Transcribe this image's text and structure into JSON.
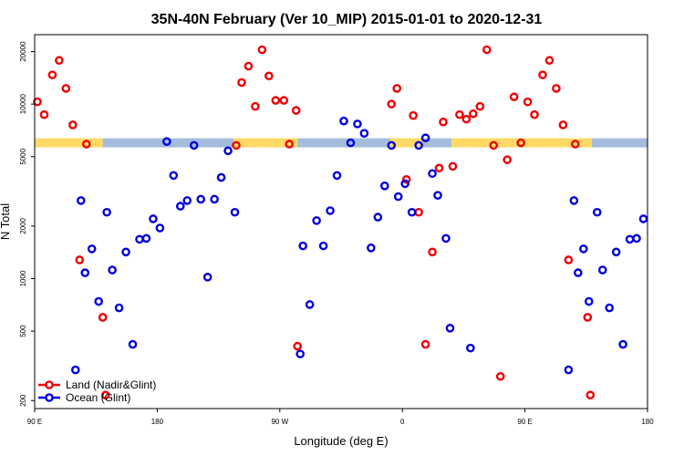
{
  "chart_data": {
    "type": "scatter",
    "title": "35N-40N February (Ver 10_MIP)   2015-01-01 to 2020-12-31",
    "xlabel": "Longitude (deg E)",
    "ylabel": "N Total",
    "yscale": "log",
    "xlim": [
      90,
      540
    ],
    "ylim": [
      180,
      25000
    ],
    "x_ticks": [
      {
        "value": 90,
        "label": "90 E"
      },
      {
        "value": 180,
        "label": "180"
      },
      {
        "value": 270,
        "label": "90 W"
      },
      {
        "value": 360,
        "label": "0"
      },
      {
        "value": 450,
        "label": "90 E"
      },
      {
        "value": 540,
        "label": "180"
      }
    ],
    "y_ticks": [
      {
        "value": 200,
        "label": "200"
      },
      {
        "value": 500,
        "label": "500"
      },
      {
        "value": 1000,
        "label": "1000"
      },
      {
        "value": 2000,
        "label": "2000"
      },
      {
        "value": 5000,
        "label": "5000"
      },
      {
        "value": 10000,
        "label": "10000"
      },
      {
        "value": 20000,
        "label": "20000"
      }
    ],
    "land_ocean_strip": {
      "y_value": 6000,
      "land_color": "#ffd966",
      "ocean_color": "#a3bddb",
      "segments": [
        {
          "type": "land",
          "x0": 90,
          "x1": 140
        },
        {
          "type": "ocean",
          "x0": 140,
          "x1": 236
        },
        {
          "type": "land",
          "x0": 236,
          "x1": 283
        },
        {
          "type": "ocean",
          "x0": 283,
          "x1": 351
        },
        {
          "type": "land",
          "x0": 351,
          "x1": 375
        },
        {
          "type": "ocean",
          "x0": 375,
          "x1": 396
        },
        {
          "type": "land",
          "x0": 396,
          "x1": 499
        },
        {
          "type": "ocean",
          "x0": 499,
          "x1": 540
        }
      ]
    },
    "series": [
      {
        "name": "Land (Nadir&Glint)",
        "color": "#ee0000",
        "points": [
          {
            "x": 92,
            "y": 10300
          },
          {
            "x": 97,
            "y": 8700
          },
          {
            "x": 103,
            "y": 14700
          },
          {
            "x": 108,
            "y": 17800
          },
          {
            "x": 113,
            "y": 12300
          },
          {
            "x": 118,
            "y": 7600
          },
          {
            "x": 123,
            "y": 1280
          },
          {
            "x": 128,
            "y": 5900
          },
          {
            "x": 140,
            "y": 600
          },
          {
            "x": 142,
            "y": 215
          },
          {
            "x": 238,
            "y": 5800
          },
          {
            "x": 242,
            "y": 13300
          },
          {
            "x": 247,
            "y": 16500
          },
          {
            "x": 252,
            "y": 9700
          },
          {
            "x": 257,
            "y": 20500
          },
          {
            "x": 262,
            "y": 14500
          },
          {
            "x": 267,
            "y": 10500
          },
          {
            "x": 273,
            "y": 10500
          },
          {
            "x": 277,
            "y": 5900
          },
          {
            "x": 282,
            "y": 9200
          },
          {
            "x": 283,
            "y": 410
          },
          {
            "x": 352,
            "y": 10000
          },
          {
            "x": 356,
            "y": 12300
          },
          {
            "x": 363,
            "y": 3700
          },
          {
            "x": 368,
            "y": 8600
          },
          {
            "x": 372,
            "y": 2400
          },
          {
            "x": 377,
            "y": 420
          },
          {
            "x": 382,
            "y": 1420
          },
          {
            "x": 387,
            "y": 4300
          },
          {
            "x": 390,
            "y": 7900
          },
          {
            "x": 397,
            "y": 4400
          },
          {
            "x": 402,
            "y": 8700
          },
          {
            "x": 407,
            "y": 8200
          },
          {
            "x": 412,
            "y": 8800
          },
          {
            "x": 417,
            "y": 9700
          },
          {
            "x": 422,
            "y": 20500
          },
          {
            "x": 427,
            "y": 5800
          },
          {
            "x": 432,
            "y": 275
          },
          {
            "x": 437,
            "y": 4800
          },
          {
            "x": 442,
            "y": 11000
          },
          {
            "x": 447,
            "y": 6000
          },
          {
            "x": 452,
            "y": 10300
          },
          {
            "x": 457,
            "y": 8700
          },
          {
            "x": 463,
            "y": 14700
          },
          {
            "x": 468,
            "y": 17800
          },
          {
            "x": 473,
            "y": 12300
          },
          {
            "x": 478,
            "y": 7600
          },
          {
            "x": 482,
            "y": 1280
          },
          {
            "x": 487,
            "y": 5900
          },
          {
            "x": 496,
            "y": 600
          },
          {
            "x": 498,
            "y": 215
          }
        ]
      },
      {
        "name": "Ocean (Glint)",
        "color": "#0000dd",
        "points": [
          {
            "x": 120,
            "y": 300
          },
          {
            "x": 124,
            "y": 2800
          },
          {
            "x": 127,
            "y": 1080
          },
          {
            "x": 132,
            "y": 1480
          },
          {
            "x": 137,
            "y": 740
          },
          {
            "x": 143,
            "y": 2400
          },
          {
            "x": 147,
            "y": 1120
          },
          {
            "x": 152,
            "y": 680
          },
          {
            "x": 157,
            "y": 1420
          },
          {
            "x": 162,
            "y": 420
          },
          {
            "x": 167,
            "y": 1680
          },
          {
            "x": 172,
            "y": 1700
          },
          {
            "x": 177,
            "y": 2200
          },
          {
            "x": 182,
            "y": 1950
          },
          {
            "x": 187,
            "y": 6100
          },
          {
            "x": 192,
            "y": 3900
          },
          {
            "x": 197,
            "y": 2600
          },
          {
            "x": 202,
            "y": 2800
          },
          {
            "x": 207,
            "y": 5800
          },
          {
            "x": 212,
            "y": 2850
          },
          {
            "x": 217,
            "y": 1020
          },
          {
            "x": 222,
            "y": 2850
          },
          {
            "x": 227,
            "y": 3800
          },
          {
            "x": 232,
            "y": 5400
          },
          {
            "x": 237,
            "y": 2400
          },
          {
            "x": 285,
            "y": 370
          },
          {
            "x": 287,
            "y": 1540
          },
          {
            "x": 292,
            "y": 710
          },
          {
            "x": 297,
            "y": 2150
          },
          {
            "x": 302,
            "y": 1540
          },
          {
            "x": 307,
            "y": 2450
          },
          {
            "x": 312,
            "y": 3900
          },
          {
            "x": 317,
            "y": 8000
          },
          {
            "x": 322,
            "y": 6000
          },
          {
            "x": 327,
            "y": 7700
          },
          {
            "x": 332,
            "y": 6800
          },
          {
            "x": 337,
            "y": 1500
          },
          {
            "x": 342,
            "y": 2250
          },
          {
            "x": 347,
            "y": 3400
          },
          {
            "x": 352,
            "y": 5800
          },
          {
            "x": 357,
            "y": 2950
          },
          {
            "x": 362,
            "y": 3500
          },
          {
            "x": 367,
            "y": 2400
          },
          {
            "x": 372,
            "y": 5800
          },
          {
            "x": 377,
            "y": 6400
          },
          {
            "x": 382,
            "y": 4000
          },
          {
            "x": 386,
            "y": 3000
          },
          {
            "x": 392,
            "y": 1700
          },
          {
            "x": 395,
            "y": 520
          },
          {
            "x": 410,
            "y": 400
          },
          {
            "x": 482,
            "y": 300
          },
          {
            "x": 486,
            "y": 2800
          },
          {
            "x": 489,
            "y": 1080
          },
          {
            "x": 493,
            "y": 1480
          },
          {
            "x": 497,
            "y": 740
          },
          {
            "x": 503,
            "y": 2400
          },
          {
            "x": 507,
            "y": 1120
          },
          {
            "x": 512,
            "y": 680
          },
          {
            "x": 517,
            "y": 1420
          },
          {
            "x": 522,
            "y": 420
          },
          {
            "x": 527,
            "y": 1680
          },
          {
            "x": 532,
            "y": 1700
          },
          {
            "x": 537,
            "y": 2200
          }
        ]
      }
    ],
    "legend": {
      "position": "bottom-left",
      "entries": [
        {
          "label": "Land (Nadir&Glint)",
          "color": "#ee0000"
        },
        {
          "label": "Ocean (Glint)",
          "color": "#0000dd"
        }
      ]
    }
  }
}
